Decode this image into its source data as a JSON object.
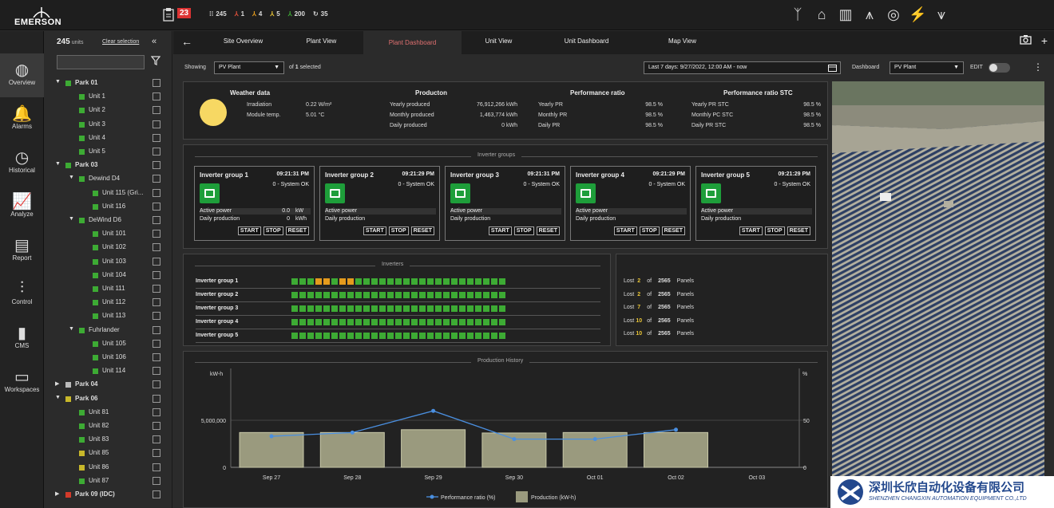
{
  "brand": {
    "name": "EMERSON"
  },
  "alarm": {
    "count": "23"
  },
  "stats": [
    {
      "icon": "unit-icon",
      "value": "245",
      "color": "#cccccc"
    },
    {
      "icon": "alert-icon",
      "value": "1",
      "color": "#e0503a"
    },
    {
      "icon": "warning-icon",
      "value": "4",
      "color": "#e59b1d"
    },
    {
      "icon": "info-icon",
      "value": "5",
      "color": "#e8c436"
    },
    {
      "icon": "ok-icon",
      "value": "200",
      "color": "#3dab34"
    },
    {
      "icon": "sync-icon",
      "value": "35",
      "color": "#cccccc"
    }
  ],
  "topicons": [
    "wind-turbine-icon",
    "tower-icon",
    "city-icon",
    "oil-rig-icon",
    "plant-icon",
    "lightning-icon",
    "power-line-icon"
  ],
  "leftnav": [
    {
      "label": "Overview",
      "icon": "globe-icon"
    },
    {
      "label": "Alarms",
      "icon": "bell-icon"
    },
    {
      "label": "Historical",
      "icon": "clock-icon"
    },
    {
      "label": "Analyze",
      "icon": "chart-icon"
    },
    {
      "label": "Report",
      "icon": "report-icon"
    },
    {
      "label": "Control",
      "icon": "sliders-icon"
    },
    {
      "label": "CMS",
      "icon": "bars-icon"
    },
    {
      "label": "Workspaces",
      "icon": "monitor-icon"
    }
  ],
  "tree": {
    "count": "245",
    "count_unit": "units",
    "clear": "Clear selection",
    "items": [
      {
        "label": "Park 01",
        "level": 0,
        "toggle": "▼",
        "color": "#3dab34",
        "bold": true
      },
      {
        "label": "Unit 1",
        "level": 1,
        "color": "#3dab34"
      },
      {
        "label": "Unit 2",
        "level": 1,
        "color": "#3dab34"
      },
      {
        "label": "Unit 3",
        "level": 1,
        "color": "#3dab34"
      },
      {
        "label": "Unit 4",
        "level": 1,
        "color": "#3dab34"
      },
      {
        "label": "Unit 5",
        "level": 1,
        "color": "#3dab34"
      },
      {
        "label": "Park 03",
        "level": 0,
        "toggle": "▼",
        "color": "#3dab34",
        "bold": true
      },
      {
        "label": "Dewind D4",
        "level": 1,
        "toggle": "▼",
        "color": "#3dab34"
      },
      {
        "label": "Unit 115 (Gri...",
        "level": 2,
        "color": "#3dab34"
      },
      {
        "label": "Unit 116",
        "level": 2,
        "color": "#3dab34"
      },
      {
        "label": "DeWind D6",
        "level": 1,
        "toggle": "▼",
        "color": "#3dab34"
      },
      {
        "label": "Unit 101",
        "level": 2,
        "color": "#3dab34"
      },
      {
        "label": "Unit 102",
        "level": 2,
        "color": "#3dab34"
      },
      {
        "label": "Unit 103",
        "level": 2,
        "color": "#3dab34"
      },
      {
        "label": "Unit 104",
        "level": 2,
        "color": "#3dab34"
      },
      {
        "label": "Unit 111",
        "level": 2,
        "color": "#3dab34"
      },
      {
        "label": "Unit 112",
        "level": 2,
        "color": "#3dab34"
      },
      {
        "label": "Unit 113",
        "level": 2,
        "color": "#3dab34"
      },
      {
        "label": "Fuhrlander",
        "level": 1,
        "toggle": "▼",
        "color": "#3dab34"
      },
      {
        "label": "Unit 105",
        "level": 2,
        "color": "#3dab34"
      },
      {
        "label": "Unit 106",
        "level": 2,
        "color": "#3dab34"
      },
      {
        "label": "Unit 114",
        "level": 2,
        "color": "#3dab34"
      },
      {
        "label": "Park 04",
        "level": 0,
        "toggle": "▶",
        "color": "#bbbbbb",
        "bold": true
      },
      {
        "label": "Park 06",
        "level": 0,
        "toggle": "▼",
        "color": "#c8b82a",
        "bold": true
      },
      {
        "label": "Unit 81",
        "level": 1,
        "color": "#3dab34"
      },
      {
        "label": "Unit 82",
        "level": 1,
        "color": "#3dab34"
      },
      {
        "label": "Unit 83",
        "level": 1,
        "color": "#3dab34"
      },
      {
        "label": "Unit 85",
        "level": 1,
        "color": "#c8b82a"
      },
      {
        "label": "Unit 86",
        "level": 1,
        "color": "#c8b82a"
      },
      {
        "label": "Unit 87",
        "level": 1,
        "color": "#3dab34"
      },
      {
        "label": "Park 09 (IDC)",
        "level": 0,
        "toggle": "▶",
        "color": "#d33a2a",
        "bold": true
      }
    ]
  },
  "tabs": [
    "Site Overview",
    "Plant View",
    "Plant Dashboard",
    "Unit View",
    "Unit Dashboard",
    "Map View"
  ],
  "active_tab": "Plant Dashboard",
  "filter": {
    "showing_label": "Showing",
    "showing_value": "PV Plant",
    "selected_pre": "of",
    "selected_count": "1",
    "selected_post": "selected",
    "range": "Last 7 days:  9/27/2022, 12:00 AM - now",
    "dashboard_label": "Dashboard",
    "dashboard_value": "PV Plant",
    "edit": "EDIT"
  },
  "summary": {
    "weather": {
      "title": "Weather data",
      "rows": [
        [
          "Irradiation",
          "0.22 W/m²"
        ],
        [
          "Module temp.",
          "5.01 °C"
        ]
      ]
    },
    "production": {
      "title": "Producton",
      "rows": [
        [
          "Yearly produced",
          "76,912,266 kWh"
        ],
        [
          "Monthly produced",
          "1,463,774 kWh"
        ],
        [
          "Daily produced",
          "0 kWh"
        ]
      ]
    },
    "pr": {
      "title": "Performance ratio",
      "rows": [
        [
          "Yearly PR",
          "98.5 %"
        ],
        [
          "Monthly PR",
          "98.5 %"
        ],
        [
          "Daily PR",
          "98.5 %"
        ]
      ]
    },
    "prstc": {
      "title": "Performance ratio STC",
      "rows": [
        [
          "Yearly PR STC",
          "98.5 %"
        ],
        [
          "Monthly PC STC",
          "98.5 %"
        ],
        [
          "Daily PR STC",
          "98.5 %"
        ]
      ]
    }
  },
  "inverter_groups": {
    "title": "Inverter groups",
    "groups": [
      {
        "name": "Inverter group 1",
        "time": "09:21:31 PM",
        "status": "0 - System OK",
        "active_power": "0.0",
        "active_unit": "kW",
        "daily": "0",
        "daily_unit": "kWh"
      },
      {
        "name": "Inverter group 2",
        "time": "09:21:29 PM",
        "status": "0 - System OK",
        "active_power": "",
        "active_unit": "",
        "daily": "",
        "daily_unit": ""
      },
      {
        "name": "Inverter group 3",
        "time": "09:21:31 PM",
        "status": "0 - System OK",
        "active_power": "",
        "active_unit": "",
        "daily": "",
        "daily_unit": ""
      },
      {
        "name": "Inverter group 4",
        "time": "09:21:29 PM",
        "status": "0 - System OK",
        "active_power": "",
        "active_unit": "",
        "daily": "",
        "daily_unit": ""
      },
      {
        "name": "Inverter group 5",
        "time": "09:21:29 PM",
        "status": "0 - System OK",
        "active_power": "",
        "active_unit": "",
        "daily": "",
        "daily_unit": ""
      }
    ],
    "active_label": "Active power",
    "daily_label": "Daily production",
    "buttons": [
      "START",
      "STOP",
      "RESET"
    ]
  },
  "inverters": {
    "title": "Inverters",
    "rows": [
      {
        "name": "Inverter group 1",
        "cells": "GGGOOGOOGGGGGGGGGGGGGGGGGGG"
      },
      {
        "name": "Inverter group 2",
        "cells": "GGGGGGGGGGGGGGGGGGGGGGGGGGG"
      },
      {
        "name": "Inverter group 3",
        "cells": "GGGGGGGGGGGGGGGGGGGGGGGGGGG"
      },
      {
        "name": "Inverter group 4",
        "cells": "GGGGGGGGGGGGGGGGGGGGGGGGGGG"
      },
      {
        "name": "Inverter group 5",
        "cells": "GGGGGGGGGGGGGGGGGGGGGGGGGGG"
      }
    ]
  },
  "lost": [
    {
      "n": "2"
    },
    {
      "n": "2"
    },
    {
      "n": "7"
    },
    {
      "n": "10"
    },
    {
      "n": "10"
    }
  ],
  "lost_text": {
    "pre": "Lost",
    "of": "of",
    "total": "2565",
    "post": "Panels"
  },
  "chart_data": {
    "type": "bar",
    "title": "Production History",
    "categories": [
      "Sep 27",
      "Sep 28",
      "Sep 29",
      "Sep 30",
      "Oct 01",
      "Oct 02",
      "Oct 03"
    ],
    "series": [
      {
        "name": "Production (kW-h)",
        "type": "bar",
        "axis": "left",
        "values": [
          3700000,
          3700000,
          4000000,
          3650000,
          3700000,
          3700000,
          null
        ]
      },
      {
        "name": "Performance ratio (%)",
        "type": "line",
        "axis": "right",
        "values": [
          33,
          37,
          60,
          30,
          30,
          40,
          null
        ]
      }
    ],
    "ylabel": "kW-h",
    "ylabel_right": "%",
    "yticks": [
      "0",
      "5,000,000"
    ],
    "yticks_right": [
      "0",
      "50"
    ],
    "ylim": [
      0,
      10000000
    ],
    "ylim_right": [
      0,
      100
    ]
  },
  "watermark": {
    "title": "深圳长欣自动化设备有限公司",
    "sub": "SHENZHEN CHANGXIN AUTOMATION EQUIPMENT CO.,LTD"
  }
}
